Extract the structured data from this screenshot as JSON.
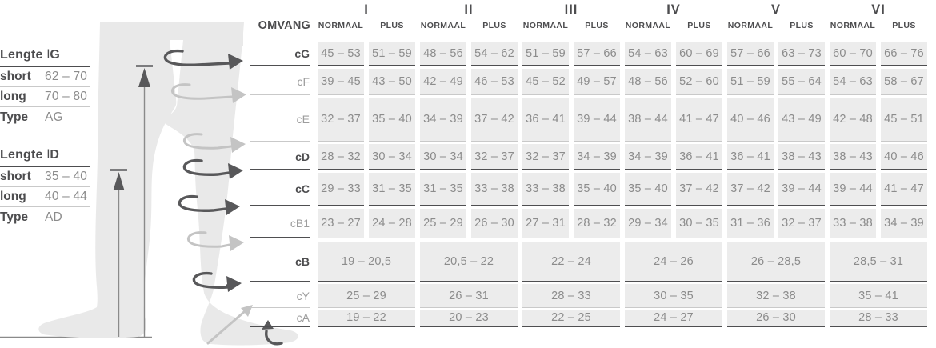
{
  "left_panel": {
    "groups": [
      {
        "title_word": "Lengte",
        "title_symbol": "l",
        "title_letter": "G",
        "rows": [
          {
            "label": "short",
            "value": "62 – 70"
          },
          {
            "label": "long",
            "value": "70 – 80"
          },
          {
            "label": "Type",
            "value": "AG"
          }
        ]
      },
      {
        "title_word": "Lengte",
        "title_symbol": "l",
        "title_letter": "D",
        "rows": [
          {
            "label": "short",
            "value": "35 – 40"
          },
          {
            "label": "long",
            "value": "40 – 44"
          },
          {
            "label": "Type",
            "value": "AD"
          }
        ]
      }
    ]
  },
  "figure": {
    "girth_arrows": [
      {
        "name": "cG",
        "tone": "dark"
      },
      {
        "name": "cF",
        "tone": "light"
      },
      {
        "name": "cE",
        "tone": "light"
      },
      {
        "name": "cD",
        "tone": "dark"
      },
      {
        "name": "cC",
        "tone": "dark"
      },
      {
        "name": "cB1",
        "tone": "light"
      },
      {
        "name": "cB",
        "tone": "dark"
      },
      {
        "name": "cY",
        "tone": "light"
      },
      {
        "name": "cA",
        "tone": "dark"
      }
    ],
    "length_arrows": [
      "lG",
      "lD"
    ]
  },
  "table": {
    "corner_label": "OMVANG",
    "sizes": [
      {
        "numeral": "I",
        "columns": [
          "NORMAAL",
          "PLUS"
        ]
      },
      {
        "numeral": "II",
        "columns": [
          "NORMAAL",
          "PLUS"
        ]
      },
      {
        "numeral": "III",
        "columns": [
          "NORMAAL",
          "PLUS"
        ]
      },
      {
        "numeral": "IV",
        "columns": [
          "NORMAAL",
          "PLUS"
        ]
      },
      {
        "numeral": "V",
        "columns": [
          "NORMAAL",
          "PLUS"
        ]
      },
      {
        "numeral": "VI",
        "columns": [
          "NORMAAL",
          "PLUS"
        ]
      }
    ],
    "rows": [
      {
        "label": "cG",
        "bold": true,
        "merged": false,
        "line": "dark",
        "values": [
          "45 – 53",
          "51 – 59",
          "48 – 56",
          "54 – 62",
          "51 – 59",
          "57 – 66",
          "54 – 63",
          "60 – 69",
          "57 – 66",
          "63 – 73",
          "60 – 70",
          "66 – 76"
        ]
      },
      {
        "label": "cF",
        "bold": false,
        "merged": false,
        "line": "light",
        "values": [
          "39 – 45",
          "43 – 50",
          "42 – 49",
          "46 – 53",
          "45 – 52",
          "49 – 57",
          "48 – 56",
          "52 – 60",
          "51 – 59",
          "55 – 64",
          "54 – 63",
          "58 – 67"
        ]
      },
      {
        "label": "cE",
        "bold": false,
        "merged": false,
        "line": "light",
        "values": [
          "32 – 37",
          "35 – 40",
          "34 – 39",
          "37 – 42",
          "36 – 41",
          "39 – 44",
          "38 – 44",
          "41 – 47",
          "40 – 46",
          "43 – 49",
          "42 – 48",
          "45 – 51"
        ]
      },
      {
        "label": "cD",
        "bold": true,
        "merged": false,
        "line": "dark",
        "values": [
          "28 – 32",
          "30 – 34",
          "30 – 34",
          "32 – 37",
          "32 – 37",
          "34 – 39",
          "34 – 39",
          "36 – 41",
          "36 – 41",
          "38 – 43",
          "38 – 43",
          "40 – 46"
        ]
      },
      {
        "label": "cC",
        "bold": true,
        "merged": false,
        "line": "dark",
        "values": [
          "29 – 33",
          "31 – 35",
          "31 – 35",
          "33 – 38",
          "33 – 38",
          "35 – 40",
          "35 – 40",
          "37 – 42",
          "37 – 42",
          "39 – 44",
          "39 – 44",
          "41 – 47"
        ]
      },
      {
        "label": "cB1",
        "bold": false,
        "merged": false,
        "line": "light",
        "label_line": "dark",
        "values": [
          "23 – 27",
          "24 – 28",
          "25 – 29",
          "26 – 30",
          "27 – 31",
          "28 – 32",
          "29 – 34",
          "30 – 35",
          "31 – 36",
          "32 – 37",
          "33 – 38",
          "34 – 39"
        ]
      },
      {
        "label": "cB",
        "bold": true,
        "merged": true,
        "line": "dark",
        "values": [
          "19 – 20,5",
          "20,5 – 22",
          "22 – 24",
          "24 – 26",
          "26 – 28,5",
          "28,5 – 31"
        ]
      },
      {
        "label": "cY",
        "bold": false,
        "merged": true,
        "line": "light",
        "values": [
          "25 – 29",
          "26 – 31",
          "28 – 33",
          "30 – 35",
          "32 – 38",
          "35 – 41"
        ]
      },
      {
        "label": "cA",
        "bold": false,
        "merged": true,
        "line": "dark",
        "values": [
          "19 – 22",
          "20 – 23",
          "22 – 25",
          "24 – 27",
          "26 – 30",
          "28 – 33"
        ]
      }
    ]
  },
  "colors": {
    "dark": "#4d4d4f",
    "darkline": "#4f4f51",
    "gray": "#8c8c8c",
    "graylabel": "#9d9d9d",
    "lightline": "#c9c9c9",
    "cellbg": "#ececec",
    "leg": "#e9e9e9",
    "arrowdark": "#58585a",
    "arrowlight": "#c4c4c4",
    "background": "#ffffff"
  }
}
